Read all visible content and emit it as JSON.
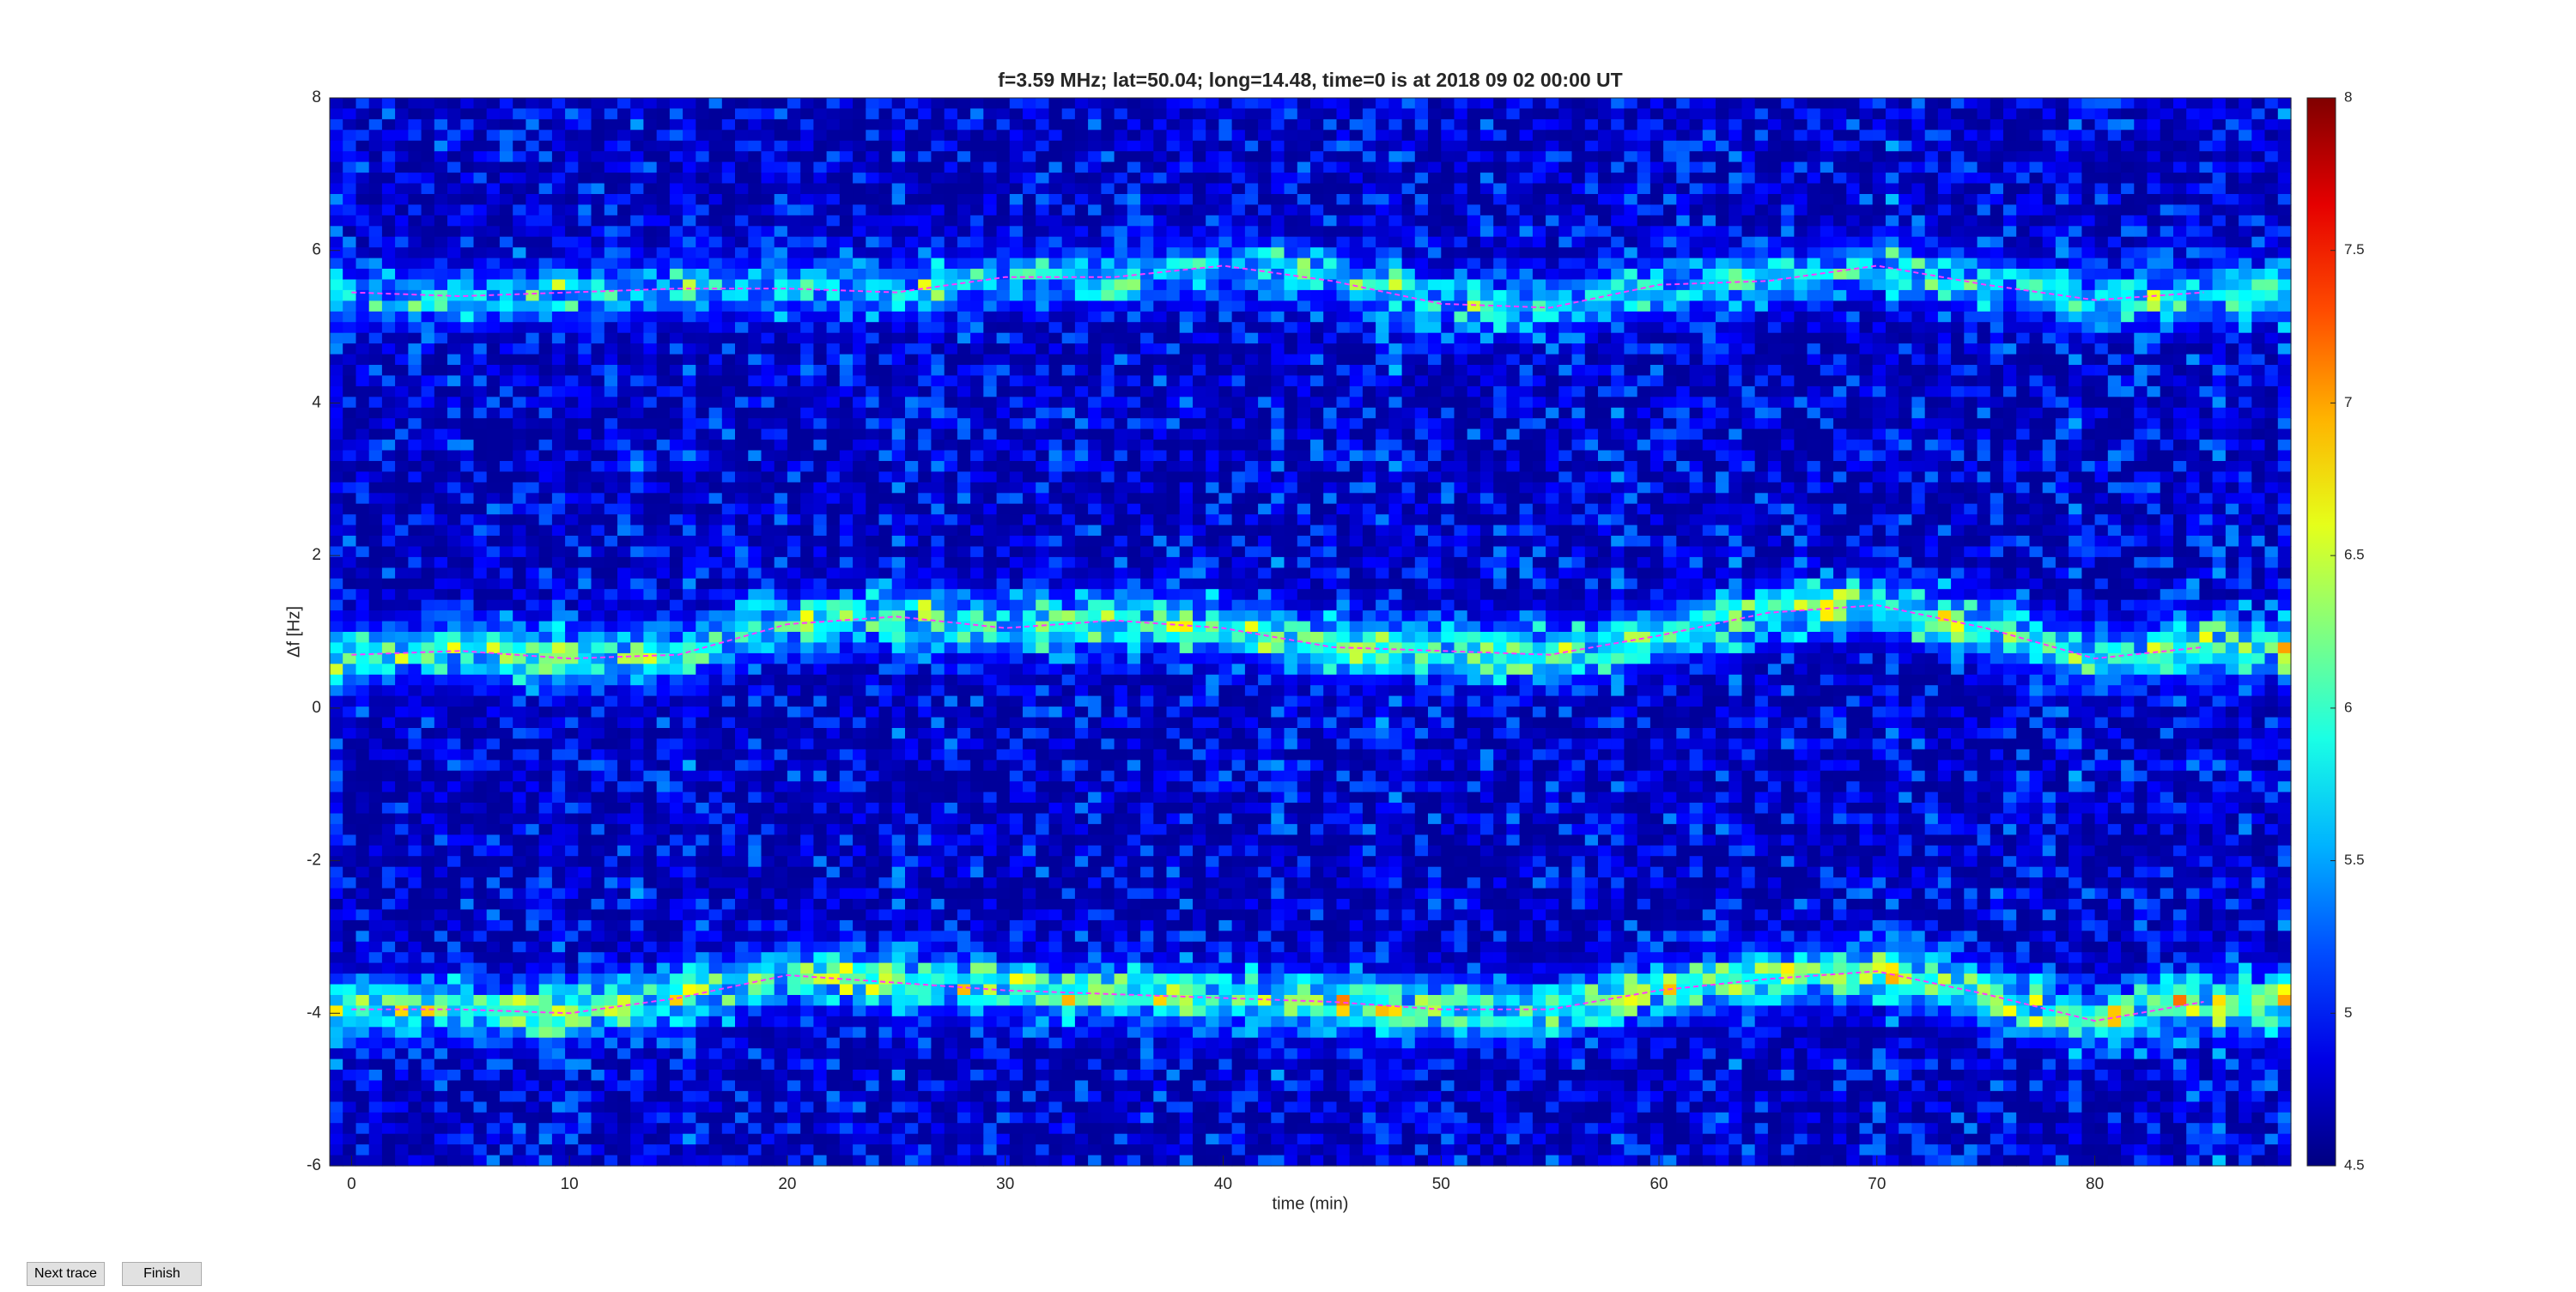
{
  "chart_data": {
    "type": "spectrogram",
    "title": "f=3.59 MHz;  lat=50.04; long=14.48, time=0 is at 2018 09 02 00:00 UT",
    "xlabel": "time (min)",
    "ylabel": "Δf [Hz]",
    "x": [
      0,
      5,
      10,
      15,
      20,
      25,
      30,
      35,
      40,
      45,
      50,
      55,
      60,
      65,
      70,
      75,
      80,
      85
    ],
    "series": [
      {
        "values": [
          5.45,
          5.4,
          5.45,
          5.5,
          5.5,
          5.45,
          5.65,
          5.65,
          5.8,
          5.6,
          5.3,
          5.25,
          5.55,
          5.6,
          5.8,
          5.55,
          5.35,
          5.45
        ]
      },
      {
        "values": [
          0.7,
          0.75,
          0.65,
          0.7,
          1.1,
          1.2,
          1.05,
          1.15,
          1.05,
          0.8,
          0.75,
          0.7,
          0.95,
          1.25,
          1.35,
          1.05,
          0.65,
          0.8
        ]
      },
      {
        "values": [
          -3.95,
          -3.95,
          -4.0,
          -3.8,
          -3.5,
          -3.6,
          -3.7,
          -3.75,
          -3.8,
          -3.85,
          -3.95,
          -3.95,
          -3.7,
          -3.55,
          -3.45,
          -3.75,
          -4.1,
          -3.85
        ]
      }
    ],
    "trace_color": "#ff3cff",
    "xlim": [
      -1,
      89
    ],
    "xticks": [
      0,
      10,
      20,
      30,
      40,
      50,
      60,
      70,
      80
    ],
    "ylim": [
      -6,
      8
    ],
    "yticks": [
      -6,
      -4,
      -2,
      0,
      2,
      4,
      6,
      8
    ],
    "clim": [
      4.5,
      8
    ],
    "cticks": [
      4.5,
      5,
      5.5,
      6,
      6.5,
      7,
      7.5,
      8
    ],
    "colormap": "jet"
  },
  "buttons": [
    "Next trace",
    "Finish"
  ]
}
